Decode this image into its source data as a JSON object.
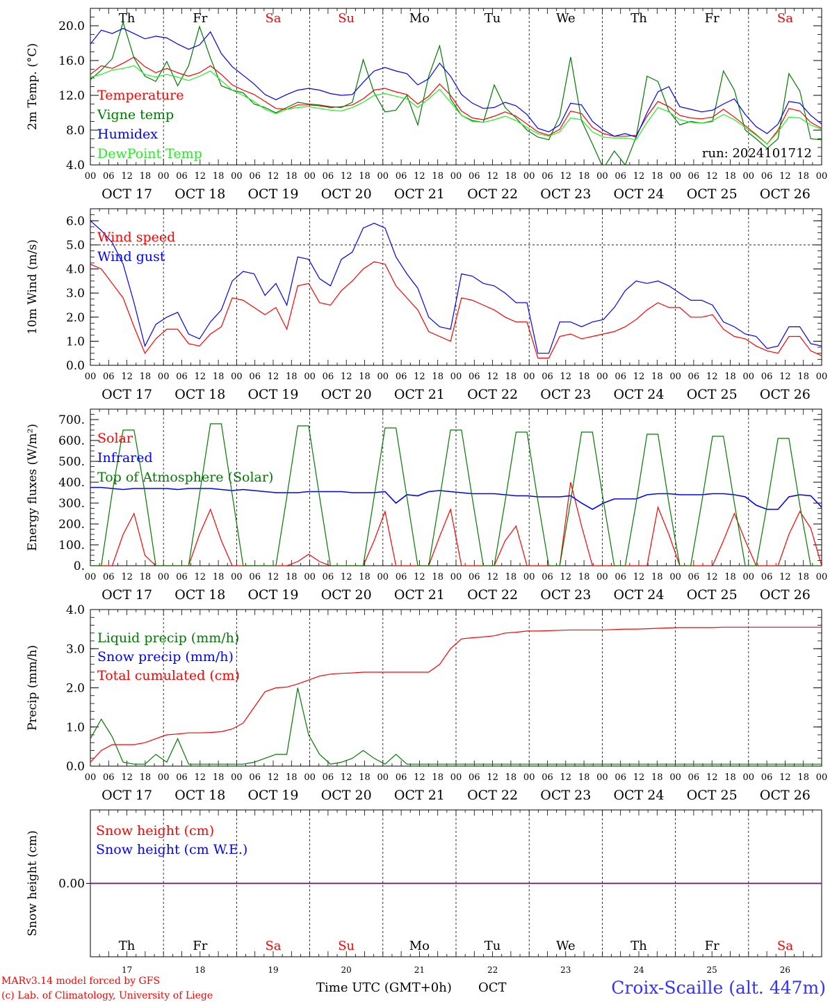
{
  "colors": {
    "red": "#ff0000",
    "green": "#007a00",
    "blue": "#0000ff",
    "lightgreen": "#22ee22",
    "purple": "#800080",
    "black": "#000000",
    "grid": "#000000",
    "location": "#3333ff"
  },
  "days": [
    {
      "abbr": "Th",
      "num": "17",
      "weekend": false
    },
    {
      "abbr": "Fr",
      "num": "18",
      "weekend": false
    },
    {
      "abbr": "Sa",
      "num": "19",
      "weekend": true
    },
    {
      "abbr": "Su",
      "num": "20",
      "weekend": true
    },
    {
      "abbr": "Mo",
      "num": "21",
      "weekend": false
    },
    {
      "abbr": "Tu",
      "num": "22",
      "weekend": false
    },
    {
      "abbr": "We",
      "num": "23",
      "weekend": false
    },
    {
      "abbr": "Th",
      "num": "24",
      "weekend": false
    },
    {
      "abbr": "Fr",
      "num": "25",
      "weekend": false
    },
    {
      "abbr": "Sa",
      "num": "26",
      "weekend": true
    }
  ],
  "date_labels": [
    "OCT 17",
    "OCT 18",
    "OCT 19",
    "OCT 20",
    "OCT 21",
    "OCT 22",
    "OCT 23",
    "OCT 24",
    "OCT 25",
    "OCT 26"
  ],
  "hour_ticks": [
    "00",
    "06",
    "12",
    "18"
  ],
  "final_hour_tick": "00",
  "footer": {
    "model_line": "MARv3.14 model forced by GFS",
    "credit_line": "(c) Lab. of Climatology, University of Liege",
    "time_axis_label": "Time UTC (GMT+0h)",
    "month_label": "OCT",
    "location": "Croix-Scaille (alt. 447m)"
  },
  "chart_data": [
    {
      "type": "line",
      "ylabel": "2m Temp. (°C)",
      "ylim": [
        4.0,
        22.0
      ],
      "yticks": [
        "4.0",
        "8.0",
        "12.0",
        "16.0",
        "20.0"
      ],
      "run_label": "run: 2024101712",
      "x_unit": "hours since OCT 17 00 UTC, 3-hourly",
      "x_range": [
        0,
        240
      ],
      "series": [
        {
          "name": "Temperature",
          "color": "red",
          "values": [
            14.4,
            15.4,
            15.1,
            15.7,
            16.4,
            15.3,
            14.6,
            15.1,
            14.6,
            14.2,
            14.6,
            15.4,
            14.4,
            13.2,
            12.6,
            12.1,
            11.3,
            10.5,
            10.4,
            10.9,
            10.9,
            10.8,
            10.6,
            10.7,
            10.9,
            11.6,
            12.6,
            12.8,
            12.4,
            12.1,
            11.0,
            11.9,
            13.3,
            12.0,
            10.2,
            9.4,
            9.2,
            9.6,
            10.1,
            9.6,
            8.7,
            7.8,
            7.4,
            8.1,
            10.2,
            9.9,
            8.3,
            7.6,
            7.3,
            7.3,
            7.4,
            9.6,
            11.3,
            10.7,
            9.7,
            9.4,
            9.3,
            9.5,
            10.4,
            9.5,
            8.5,
            7.5,
            6.4,
            8.0,
            10.5,
            10.2,
            8.9,
            8.2
          ]
        },
        {
          "name": "Vigne temp",
          "color": "green",
          "values": [
            13.8,
            14.9,
            16.2,
            20.4,
            16.3,
            14.2,
            13.6,
            15.9,
            13.1,
            15.4,
            19.9,
            16.3,
            13.1,
            12.6,
            12.3,
            11.0,
            10.6,
            10.0,
            10.6,
            11.2,
            11.0,
            10.9,
            10.7,
            10.6,
            11.2,
            16.1,
            12.3,
            10.1,
            10.3,
            12.0,
            8.6,
            14.2,
            17.7,
            11.6,
            9.7,
            9.1,
            8.9,
            13.2,
            10.6,
            9.4,
            8.0,
            7.2,
            6.9,
            9.6,
            16.4,
            9.1,
            6.4,
            3.6,
            5.6,
            4.0,
            7.2,
            14.2,
            13.6,
            10.2,
            8.6,
            9.0,
            8.8,
            9.0,
            14.8,
            12.6,
            8.0,
            7.0,
            5.9,
            7.0,
            14.5,
            12.5,
            7.0,
            6.9
          ]
        },
        {
          "name": "Humidex",
          "color": "blue",
          "values": [
            17.9,
            19.5,
            19.1,
            19.7,
            19.1,
            18.5,
            18.8,
            18.6,
            17.9,
            17.3,
            17.8,
            19.3,
            16.8,
            15.3,
            14.3,
            13.3,
            12.1,
            11.5,
            12.1,
            12.6,
            12.8,
            12.6,
            12.2,
            12.0,
            12.1,
            13.5,
            14.8,
            15.2,
            14.8,
            14.5,
            13.2,
            13.9,
            15.7,
            14.2,
            12.1,
            11.1,
            10.5,
            10.6,
            11.2,
            10.8,
            9.8,
            8.2,
            7.8,
            8.6,
            11.1,
            10.9,
            9.0,
            8.0,
            7.3,
            7.6,
            7.2,
            10.0,
            12.4,
            13.0,
            10.7,
            10.4,
            10.1,
            10.3,
            11.0,
            11.6,
            9.8,
            8.4,
            7.6,
            8.7,
            11.3,
            11.1,
            9.7,
            8.7
          ]
        },
        {
          "name": "DewPoint Temp",
          "color": "lightgreen",
          "values": [
            14.1,
            14.4,
            14.9,
            15.1,
            15.4,
            14.4,
            14.1,
            14.4,
            14.1,
            13.7,
            14.2,
            14.8,
            13.7,
            12.6,
            12.0,
            11.3,
            10.4,
            9.9,
            10.4,
            10.6,
            10.7,
            10.5,
            10.3,
            10.2,
            10.6,
            11.2,
            12.0,
            12.2,
            11.9,
            11.6,
            10.6,
            11.6,
            12.7,
            11.2,
            9.7,
            9.0,
            8.9,
            9.2,
            9.6,
            9.1,
            8.3,
            7.6,
            7.3,
            7.8,
            9.4,
            9.2,
            7.8,
            7.2,
            7.1,
            7.1,
            6.9,
            8.9,
            10.6,
            10.1,
            9.2,
            8.9,
            8.8,
            9.1,
            9.8,
            9.2,
            8.3,
            7.4,
            6.4,
            7.8,
            9.5,
            9.4,
            8.6,
            8.1
          ]
        }
      ]
    },
    {
      "type": "line",
      "ylabel": "10m Wind (m/s)",
      "ylim": [
        0.0,
        6.5
      ],
      "yticks": [
        "0.0",
        "1.0",
        "2.0",
        "3.0",
        "4.0",
        "5.0",
        "6.0"
      ],
      "reference_line": 5.0,
      "x_unit": "hours since OCT 17 00 UTC, 3-hourly",
      "x_range": [
        0,
        240
      ],
      "series": [
        {
          "name": "Wind speed",
          "color": "red",
          "values": [
            4.2,
            4.0,
            3.4,
            2.8,
            1.6,
            0.5,
            1.1,
            1.5,
            1.5,
            0.9,
            0.8,
            1.3,
            1.6,
            2.8,
            2.7,
            2.4,
            2.1,
            2.4,
            1.5,
            3.3,
            3.4,
            2.6,
            2.5,
            3.1,
            3.5,
            4.0,
            4.3,
            4.2,
            3.3,
            2.8,
            2.3,
            1.4,
            1.2,
            1.0,
            2.8,
            2.7,
            2.5,
            2.3,
            2.0,
            1.8,
            1.8,
            0.3,
            0.3,
            1.2,
            1.3,
            1.1,
            1.2,
            1.3,
            1.4,
            1.6,
            1.9,
            2.3,
            2.6,
            2.4,
            2.4,
            2.0,
            2.0,
            2.1,
            1.5,
            1.2,
            1.1,
            0.8,
            0.6,
            0.5,
            1.2,
            1.2,
            0.6,
            0.4
          ]
        },
        {
          "name": "Wind gust",
          "color": "blue",
          "values": [
            6.0,
            5.6,
            5.1,
            4.2,
            2.6,
            0.8,
            1.7,
            2.0,
            2.2,
            1.3,
            1.1,
            1.8,
            2.3,
            3.5,
            3.9,
            3.8,
            2.9,
            3.4,
            2.5,
            4.5,
            4.4,
            3.6,
            3.3,
            4.4,
            4.7,
            5.7,
            5.9,
            5.7,
            4.5,
            3.8,
            3.2,
            2.0,
            1.6,
            1.5,
            3.8,
            3.7,
            3.4,
            3.3,
            3.0,
            2.6,
            2.6,
            0.5,
            0.5,
            1.8,
            1.8,
            1.6,
            1.8,
            1.9,
            2.4,
            3.1,
            3.5,
            3.4,
            3.5,
            3.3,
            3.0,
            2.7,
            2.7,
            2.5,
            1.8,
            1.6,
            1.3,
            1.2,
            0.7,
            0.8,
            1.6,
            1.6,
            0.9,
            0.8
          ]
        }
      ]
    },
    {
      "type": "line",
      "ylabel": "Energy fluxes (W/m²)",
      "ylim": [
        0,
        750
      ],
      "yticks": [
        "0.",
        "100.",
        "200.",
        "300.",
        "400.",
        "500.",
        "600.",
        "700."
      ],
      "x_unit": "hours since OCT 17 00 UTC, 3-hourly",
      "x_range": [
        0,
        240
      ],
      "series": [
        {
          "name": "Solar",
          "color": "red",
          "values": [
            0,
            0,
            0,
            150,
            250,
            50,
            0,
            0,
            0,
            0,
            150,
            270,
            120,
            0,
            0,
            0,
            0,
            0,
            0,
            20,
            55,
            20,
            0,
            0,
            0,
            0,
            120,
            260,
            0,
            0,
            0,
            0,
            140,
            270,
            0,
            0,
            0,
            0,
            120,
            190,
            0,
            0,
            0,
            0,
            400,
            190,
            0,
            0,
            0,
            0,
            0,
            0,
            280,
            150,
            0,
            0,
            0,
            0,
            120,
            250,
            120,
            0,
            0,
            0,
            150,
            260,
            180,
            0
          ]
        },
        {
          "name": "Infrared",
          "color": "blue",
          "values": [
            375,
            375,
            370,
            365,
            370,
            370,
            370,
            370,
            365,
            370,
            370,
            370,
            365,
            360,
            365,
            360,
            355,
            350,
            350,
            350,
            355,
            355,
            355,
            355,
            350,
            350,
            350,
            355,
            300,
            340,
            335,
            355,
            360,
            355,
            350,
            345,
            345,
            345,
            340,
            335,
            335,
            330,
            330,
            330,
            335,
            300,
            270,
            300,
            320,
            320,
            320,
            340,
            345,
            345,
            340,
            340,
            340,
            345,
            345,
            340,
            330,
            290,
            270,
            270,
            330,
            340,
            335,
            280
          ]
        },
        {
          "name": "Top of Atmosphere (Solar)",
          "color": "green",
          "values": [
            0,
            0,
            350,
            650,
            650,
            350,
            0,
            0,
            0,
            0,
            340,
            680,
            680,
            340,
            0,
            0,
            0,
            0,
            330,
            670,
            670,
            330,
            0,
            0,
            0,
            0,
            330,
            660,
            660,
            330,
            0,
            0,
            320,
            650,
            650,
            320,
            0,
            0,
            310,
            640,
            640,
            310,
            0,
            0,
            310,
            640,
            640,
            310,
            0,
            0,
            300,
            630,
            630,
            300,
            0,
            0,
            300,
            620,
            620,
            300,
            0,
            0,
            290,
            610,
            610,
            290,
            0,
            0
          ]
        }
      ]
    },
    {
      "type": "line",
      "ylabel": "Precip (mm/h)",
      "ylim": [
        0.0,
        4.0
      ],
      "yticks": [
        "0.0",
        "1.0",
        "2.0",
        "3.0",
        "4.0"
      ],
      "x_unit": "hours since OCT 17 00 UTC, 3-hourly",
      "x_range": [
        0,
        240
      ],
      "series": [
        {
          "name": "Liquid precip (mm/h)",
          "color": "green",
          "values": [
            0.7,
            1.2,
            0.75,
            0.1,
            0.05,
            0.05,
            0.3,
            0.1,
            0.7,
            0.05,
            0.05,
            0.05,
            0.05,
            0.05,
            0.05,
            0.1,
            0.2,
            0.3,
            0.3,
            2.0,
            0.8,
            0.3,
            0.05,
            0.1,
            0.2,
            0.4,
            0.2,
            0.05,
            0.3,
            0.05,
            0.05,
            0.05,
            0.05,
            0.05,
            0.05,
            0.05,
            0.05,
            0.05,
            0.05,
            0.05,
            0.05,
            0.05,
            0.05,
            0.05,
            0.05,
            0.05,
            0.05,
            0.05,
            0.05,
            0.05,
            0.05,
            0.05,
            0.05,
            0.05,
            0.05,
            0.05,
            0.05,
            0.05,
            0.05,
            0.05,
            0.05,
            0.05,
            0.05,
            0.05,
            0.05,
            0.05,
            0.05,
            0.05
          ]
        },
        {
          "name": "Snow precip (mm/h)",
          "color": "blue",
          "values": []
        },
        {
          "name": "Total cumulated (cm)",
          "color": "red",
          "values": [
            0.1,
            0.4,
            0.55,
            0.55,
            0.55,
            0.6,
            0.7,
            0.8,
            0.82,
            0.85,
            0.85,
            0.86,
            0.88,
            0.95,
            1.1,
            1.5,
            1.9,
            2.0,
            2.02,
            2.1,
            2.2,
            2.3,
            2.35,
            2.37,
            2.38,
            2.4,
            2.4,
            2.4,
            2.4,
            2.4,
            2.4,
            2.4,
            2.6,
            3.0,
            3.25,
            3.28,
            3.3,
            3.33,
            3.4,
            3.42,
            3.45,
            3.45,
            3.46,
            3.47,
            3.48,
            3.48,
            3.48,
            3.48,
            3.49,
            3.5,
            3.5,
            3.51,
            3.52,
            3.53,
            3.54,
            3.54,
            3.54,
            3.54,
            3.55,
            3.55,
            3.55,
            3.55,
            3.55,
            3.55,
            3.55,
            3.55,
            3.55,
            3.55
          ]
        }
      ]
    },
    {
      "type": "line",
      "ylabel": "Snow height (cm)",
      "ylim": [
        -1.0,
        1.0
      ],
      "yticks": [
        "0.00"
      ],
      "x_unit": "hours since OCT 17 00 UTC, 3-hourly",
      "x_range": [
        0,
        240
      ],
      "series": [
        {
          "name": "Snow height (cm)",
          "color": "red",
          "values": [
            0.0,
            0.0
          ]
        },
        {
          "name": "Snow height (cm W.E.)",
          "color": "blue",
          "values": [
            0.0,
            0.0
          ]
        }
      ]
    }
  ]
}
